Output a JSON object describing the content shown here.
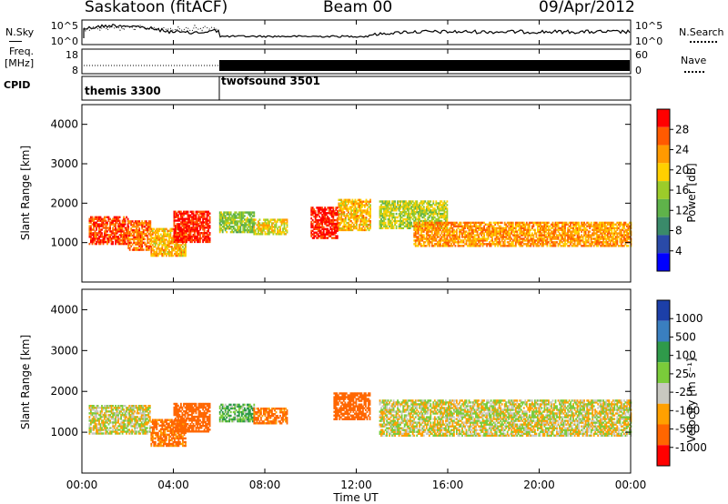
{
  "header": {
    "station": "Saskatoon (fitACF)",
    "beam": "Beam 00",
    "date": "09/Apr/2012"
  },
  "noise_panel": {
    "left_label": "N.Sky",
    "right_label": "N.Search",
    "left_ticks": [
      "10^5",
      "10^0"
    ],
    "right_ticks": [
      "10^5",
      "10^0"
    ]
  },
  "freq_panel": {
    "left_label_line1": "Freq.",
    "left_label_line2": "[MHz]",
    "right_label": "Nave",
    "left_ticks": [
      "18",
      "8"
    ],
    "right_ticks": [
      "60",
      "0"
    ]
  },
  "cpid_panel": {
    "label": "CPID",
    "programs": [
      {
        "name": "themis 3300",
        "start_hour": 0
      },
      {
        "name": "twofsound 3501",
        "start_hour": 6
      }
    ]
  },
  "power_panel": {
    "ylabel": "Slant Range [km]",
    "yticks": [
      "4000",
      "3000",
      "2000",
      "1000"
    ],
    "colorbar_label": "Power [dB]",
    "colorbar_ticks": [
      "28",
      "24",
      "20",
      "16",
      "12",
      "8",
      "4"
    ]
  },
  "velocity_panel": {
    "ylabel": "Slant Range [km]",
    "yticks": [
      "4000",
      "3000",
      "2000",
      "1000"
    ],
    "colorbar_label": "Velocity [m s⁻¹]",
    "colorbar_ticks": [
      "1000",
      "500",
      "100",
      "25",
      "-25",
      "-100",
      "-500",
      "-1000"
    ]
  },
  "xaxis": {
    "label": "Time UT",
    "ticks": [
      "00:00",
      "04:00",
      "08:00",
      "12:00",
      "16:00",
      "20:00",
      "00:00"
    ]
  },
  "colors": {
    "power_scale": [
      "#0000ff",
      "#2a4aa8",
      "#3a8a6a",
      "#5fb34a",
      "#9ccc2a",
      "#ffd000",
      "#ff9a00",
      "#ff5a00",
      "#ff0000"
    ],
    "velocity_scale": [
      "#1c3fa8",
      "#3a7fc0",
      "#2f9a4a",
      "#7acc3a",
      "#c8c8c0",
      "#ffa000",
      "#ff6600",
      "#ff0000"
    ],
    "ground_scatter": "#b8b8b0"
  },
  "chart_data": {
    "type": "heatmap",
    "x_range_hours": [
      0,
      24
    ],
    "y_range_km": [
      0,
      4500
    ],
    "power_scatter_bands": [
      {
        "t0": 0.3,
        "t1": 2.0,
        "r0": 950,
        "r1": 1650,
        "power_db": 26
      },
      {
        "t0": 2.0,
        "t1": 3.0,
        "r0": 800,
        "r1": 1550,
        "power_db": 24
      },
      {
        "t0": 3.0,
        "t1": 4.5,
        "r0": 650,
        "r1": 1350,
        "power_db": 20
      },
      {
        "t0": 4.0,
        "t1": 5.6,
        "r0": 1000,
        "r1": 1800,
        "power_db": 28
      },
      {
        "t0": 6.0,
        "t1": 7.5,
        "r0": 1250,
        "r1": 1750,
        "power_db": 14
      },
      {
        "t0": 7.5,
        "t1": 9.0,
        "r0": 1200,
        "r1": 1600,
        "power_db": 18
      },
      {
        "t0": 10.0,
        "t1": 11.2,
        "r0": 1100,
        "r1": 1900,
        "power_db": 28
      },
      {
        "t0": 11.2,
        "t1": 12.6,
        "r0": 1300,
        "r1": 2100,
        "power_db": 20
      },
      {
        "t0": 13.0,
        "t1": 16.0,
        "r0": 1350,
        "r1": 2050,
        "power_db": 16
      },
      {
        "t0": 14.5,
        "t1": 24.0,
        "r0": 900,
        "r1": 1500,
        "power_db": 22
      }
    ],
    "velocity_scatter_bands": [
      {
        "t0": 0.3,
        "t1": 3.0,
        "r0": 950,
        "r1": 1650,
        "velocity": 0
      },
      {
        "t0": 3.0,
        "t1": 4.5,
        "r0": 650,
        "r1": 1300,
        "velocity": -150
      },
      {
        "t0": 4.0,
        "t1": 5.6,
        "r0": 1000,
        "r1": 1700,
        "velocity": -200
      },
      {
        "t0": 6.0,
        "t1": 7.5,
        "r0": 1250,
        "r1": 1700,
        "velocity": 100
      },
      {
        "t0": 7.5,
        "t1": 9.0,
        "r0": 1200,
        "r1": 1600,
        "velocity": -150
      },
      {
        "t0": 11.0,
        "t1": 12.6,
        "r0": 1300,
        "r1": 1950,
        "velocity": -200
      },
      {
        "t0": 13.0,
        "t1": 24.0,
        "r0": 900,
        "r1": 1800,
        "velocity": 0
      }
    ]
  }
}
